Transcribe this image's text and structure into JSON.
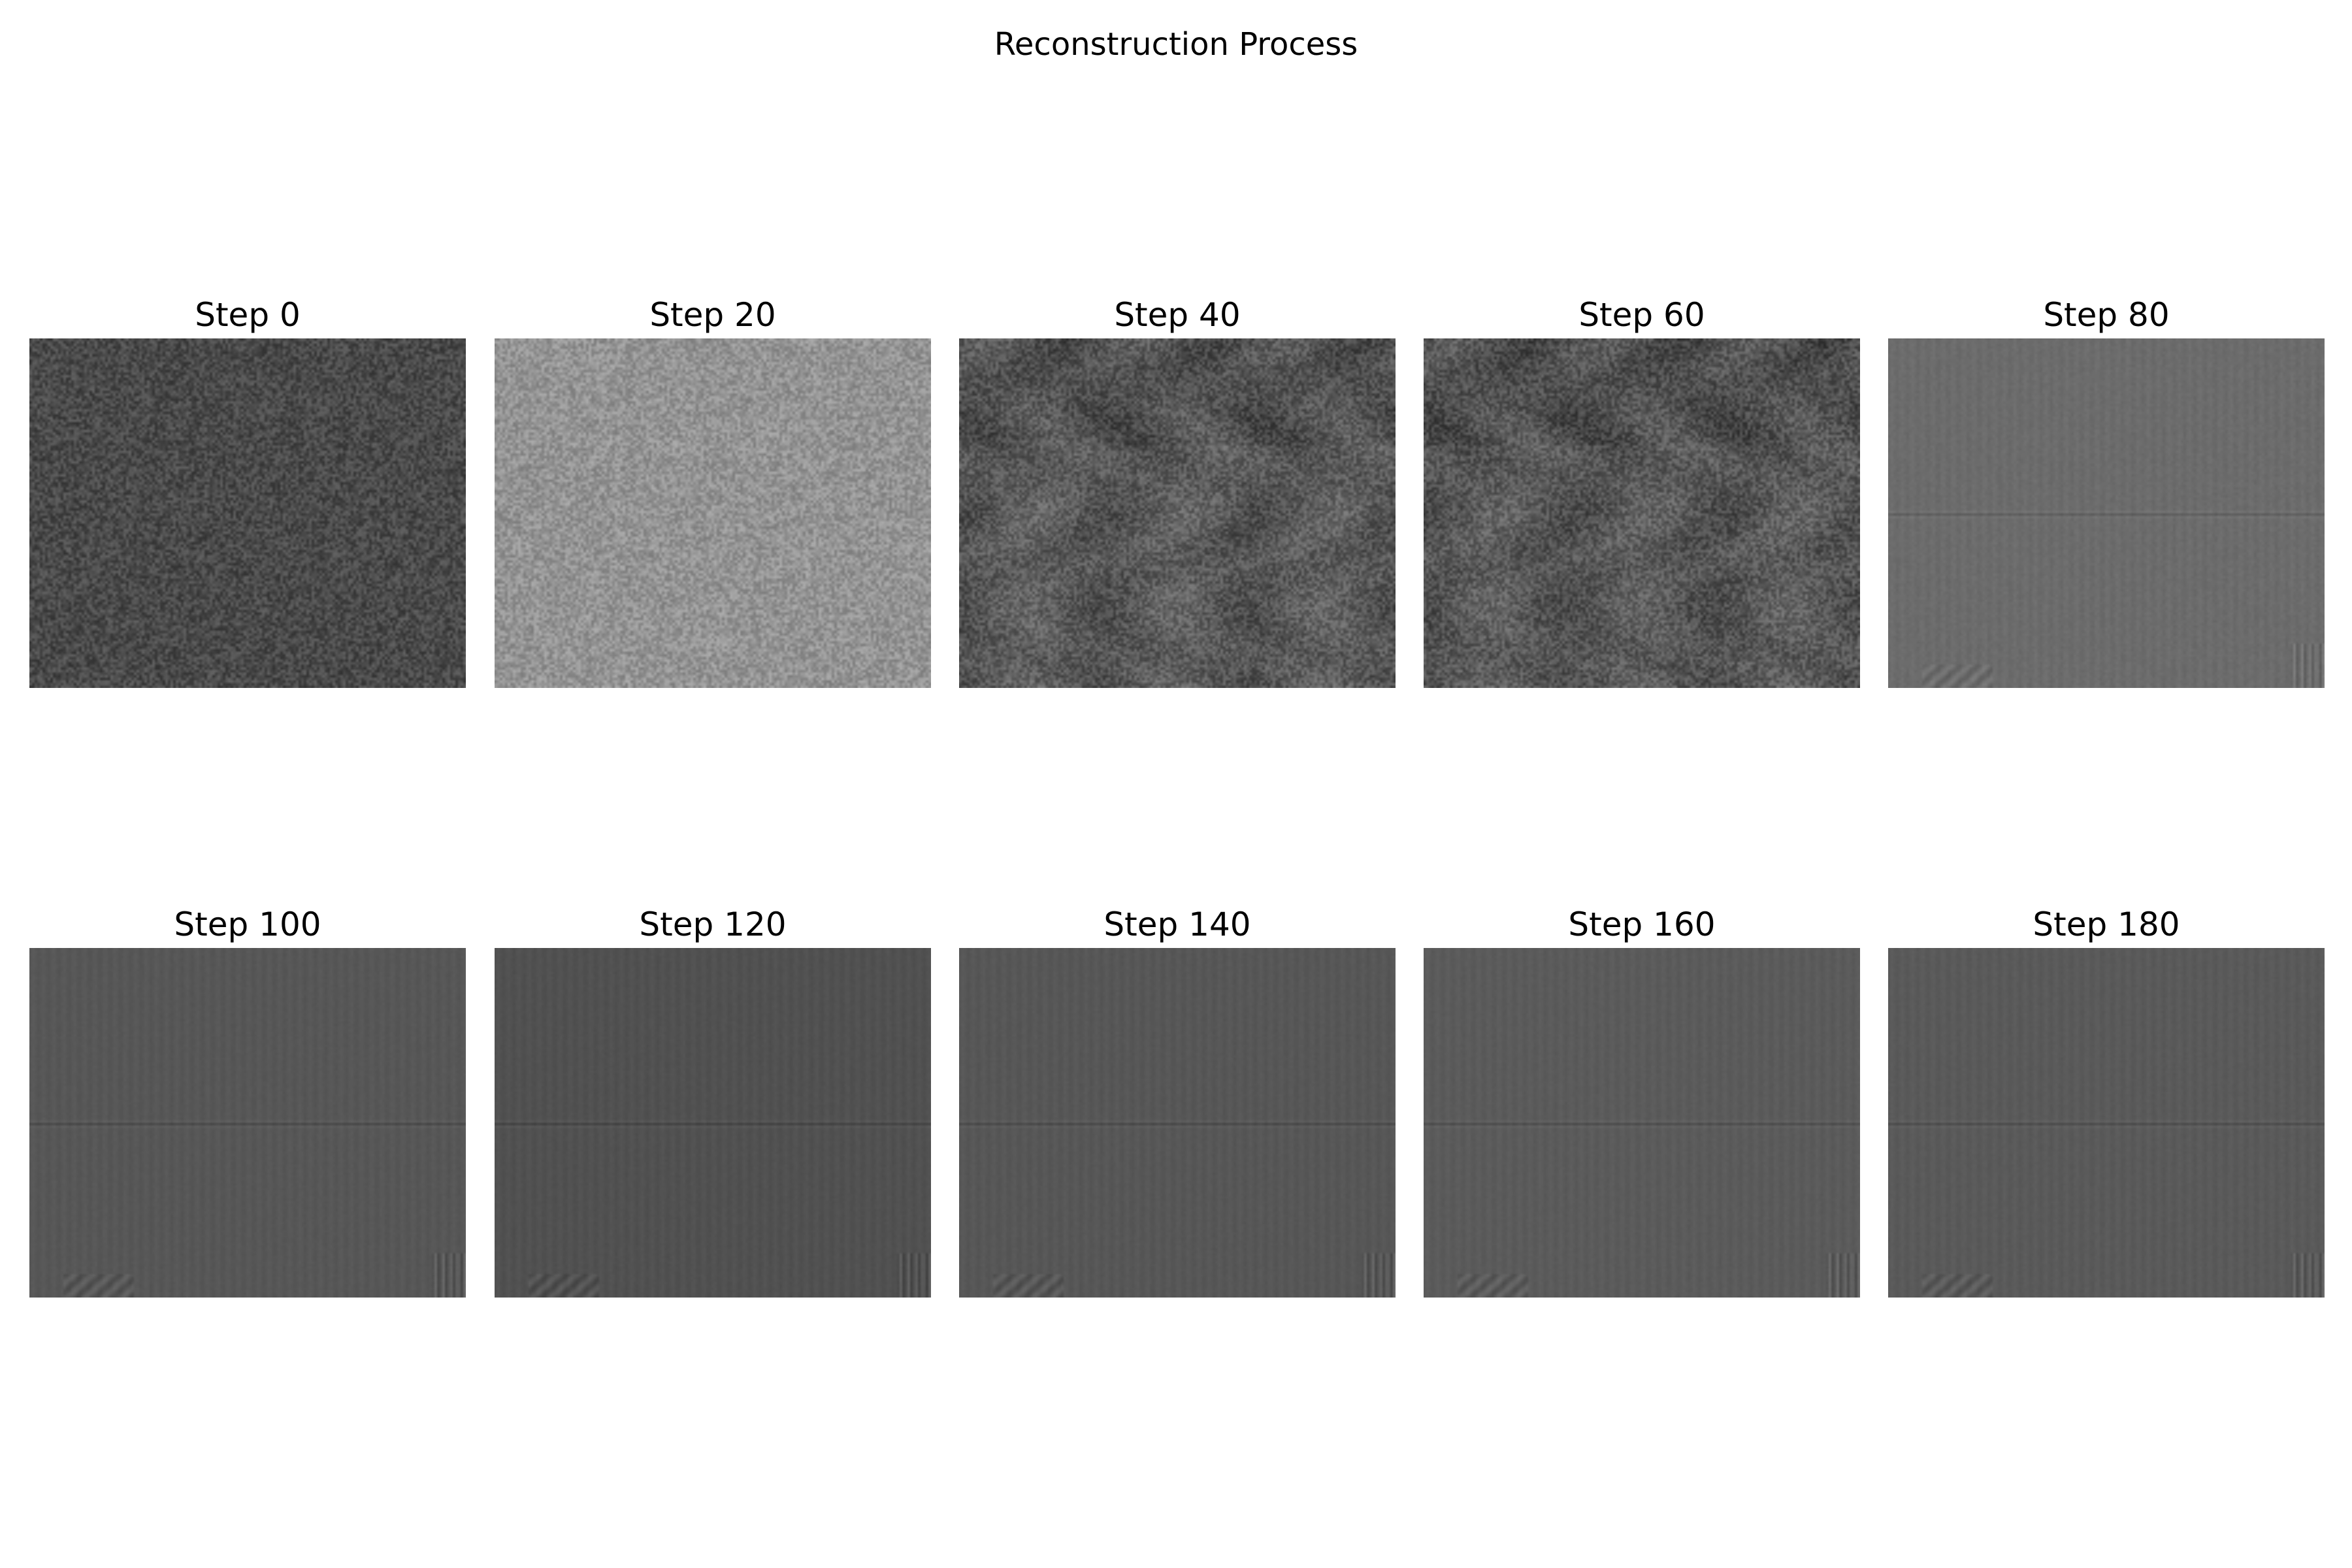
{
  "figure": {
    "title": "Reconstruction Process"
  },
  "panels": [
    {
      "label": "Step 0",
      "tone": "#4a4a4a",
      "noise": 0.55,
      "pattern": "noise"
    },
    {
      "label": "Step 20",
      "tone": "#949494",
      "noise": 0.55,
      "pattern": "noise"
    },
    {
      "label": "Step 40",
      "tone": "#5a5a5a",
      "noise": 0.6,
      "pattern": "blotchy"
    },
    {
      "label": "Step 60",
      "tone": "#585858",
      "noise": 0.6,
      "pattern": "blotchy"
    },
    {
      "label": "Step 80",
      "tone": "#6c6c6c",
      "noise": 0.08,
      "pattern": "banded"
    },
    {
      "label": "Step 100",
      "tone": "#575757",
      "noise": 0.04,
      "pattern": "banded"
    },
    {
      "label": "Step 120",
      "tone": "#515151",
      "noise": 0.04,
      "pattern": "banded"
    },
    {
      "label": "Step 140",
      "tone": "#575757",
      "noise": 0.04,
      "pattern": "banded"
    },
    {
      "label": "Step 160",
      "tone": "#5b5b5b",
      "noise": 0.04,
      "pattern": "banded"
    },
    {
      "label": "Step 180",
      "tone": "#5a5a5a",
      "noise": 0.04,
      "pattern": "banded"
    }
  ]
}
